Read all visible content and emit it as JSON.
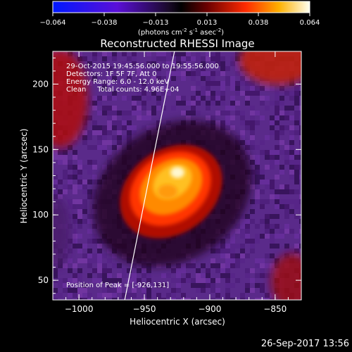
{
  "colorbar": {
    "ticks": [
      "−0.064",
      "−0.038",
      "−0.013",
      "0.013",
      "0.038",
      "0.064"
    ],
    "units_prefix": "(photons cm",
    "units_exp1": "-2",
    "units_mid1": " s",
    "units_exp2": "-1",
    "units_mid2": " asec",
    "units_exp3": "-2",
    "units_suffix": ")",
    "vmin": -0.064,
    "vmax": 0.064
  },
  "chart_data": {
    "type": "heatmap",
    "title": "Reconstructed RHESSI Image",
    "xlabel": "Heliocentric X (arcsec)",
    "ylabel": "Heliocentric Y (arcsec)",
    "xlim": [
      -1020,
      -830
    ],
    "ylim": [
      35,
      225
    ],
    "xticks": [
      -1000,
      -950,
      -900,
      -850
    ],
    "yticks": [
      50,
      100,
      150,
      200
    ],
    "xtick_labels": [
      "−1000",
      "−950",
      "−900",
      "−850"
    ],
    "ytick_labels": [
      "50",
      "100",
      "150",
      "200"
    ],
    "annotations": {
      "line1": "29-Oct-2015 19:45:56.000 to 19:55:56.000",
      "line2": "Detectors: 1F 5F 7F, Att 0",
      "line3": "Energy Range: 6.0 - 12.0 keV",
      "line4": "Clean     Total counts: 4.96E+04",
      "peak": "Position of Peak = [-926,131]"
    },
    "peak": {
      "x": -926,
      "y": 131
    },
    "source_center": {
      "x": -930,
      "y": 125
    },
    "limb_line": [
      [
        -965,
        35
      ],
      [
        -942,
        150
      ],
      [
        -927,
        225
      ]
    ]
  },
  "footer": {
    "timestamp": "26-Sep-2017 13:56"
  }
}
